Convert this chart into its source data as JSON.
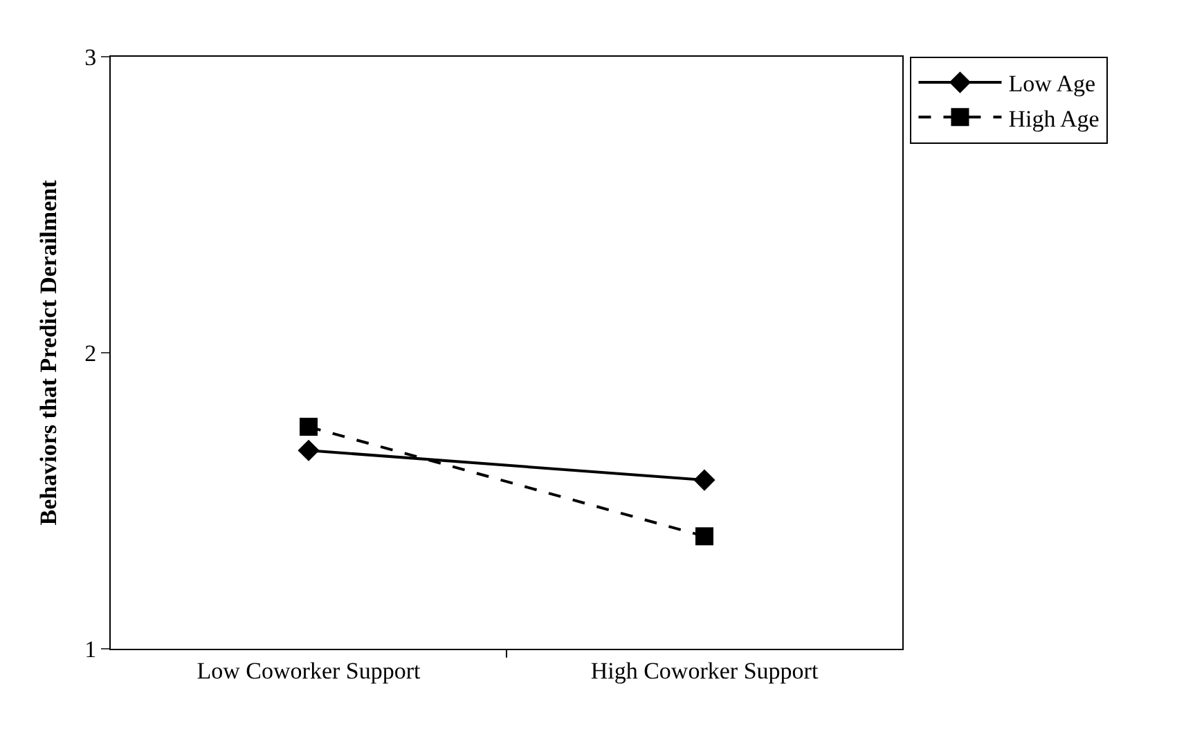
{
  "chart_data": {
    "type": "line",
    "ylabel": "Behaviors that Predict Derailment",
    "categories": [
      "Low Coworker Support",
      "High Coworker Support"
    ],
    "series": [
      {
        "name": "Low Age",
        "color": "#000000",
        "values": [
          1.67,
          1.57
        ],
        "marker": "diamond",
        "line_style": "solid"
      },
      {
        "name": "High Age",
        "color": "#000000",
        "values": [
          1.75,
          1.38
        ],
        "marker": "square",
        "line_style": "dashed"
      }
    ],
    "ylim": [
      1,
      3
    ],
    "yticks": [
      1,
      2,
      3
    ],
    "legend": "top right"
  }
}
